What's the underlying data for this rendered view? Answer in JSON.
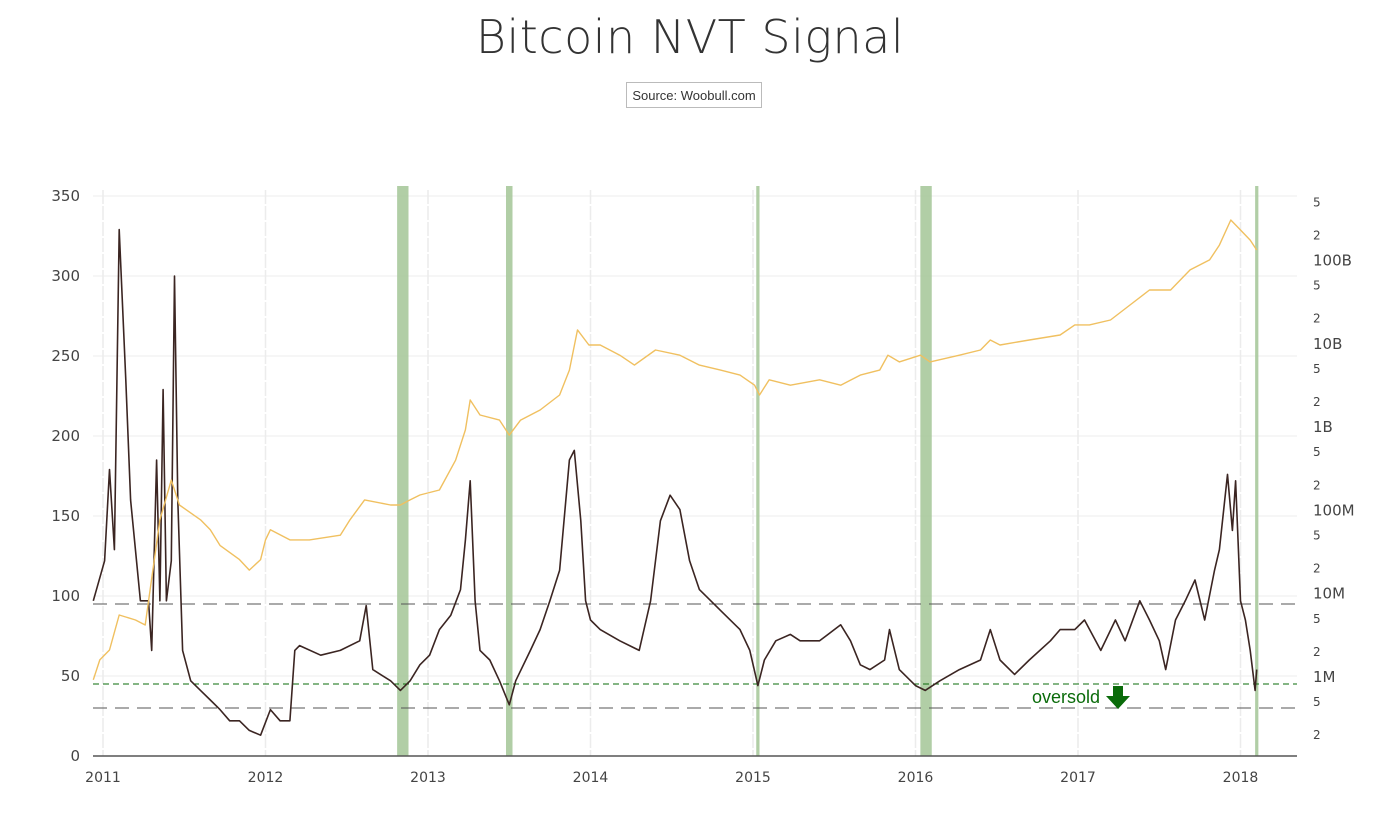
{
  "chart_data": {
    "type": "line",
    "title": "Bitcoin NVT Signal",
    "subtitle": "Source: Woobull.com",
    "x_ticks": [
      "2011",
      "2012",
      "2013",
      "2014",
      "2015",
      "2016",
      "2017",
      "2018"
    ],
    "xlim": [
      2010.94,
      2018.1
    ],
    "y_left": {
      "ylim": [
        0,
        350
      ],
      "ticks": [
        "0",
        "50",
        "100",
        "150",
        "200",
        "250",
        "300",
        "350"
      ],
      "scale": "linear"
    },
    "y_right": {
      "scale": "log",
      "ylim": [
        110000,
        690000000000
      ],
      "major_ticks": [
        {
          "value": 1000000,
          "label": "1M"
        },
        {
          "value": 10000000,
          "label": "10M"
        },
        {
          "value": 100000000,
          "label": "100M"
        },
        {
          "value": 1000000000,
          "label": "1B"
        },
        {
          "value": 10000000000,
          "label": "10B"
        },
        {
          "value": 100000000000,
          "label": "100B"
        }
      ],
      "minor_labels": [
        "2",
        "5"
      ]
    },
    "grid": true,
    "reference_lines": [
      {
        "value": 95,
        "color": "#555555",
        "style": "dashed"
      },
      {
        "value": 45,
        "color": "#0a6b0a",
        "style": "dashed"
      },
      {
        "value": 30,
        "color": "#555555",
        "style": "dashed"
      }
    ],
    "annotation": {
      "text": "oversold",
      "icon": "arrow-down-icon",
      "color": "#0a6b0a",
      "x": 2017.2,
      "y": 38
    },
    "highlight_bands": [
      [
        2012.81,
        2012.88
      ],
      [
        2013.48,
        2013.52
      ],
      [
        2015.02,
        2015.04
      ],
      [
        2016.03,
        2016.1
      ],
      [
        2018.09,
        2018.11
      ]
    ],
    "band_color": "#a8c99c",
    "series": [
      {
        "axis": "left",
        "color": "#3b2522",
        "points": [
          [
            2010.94,
            97
          ],
          [
            2011.01,
            122
          ],
          [
            2011.04,
            179
          ],
          [
            2011.07,
            129
          ],
          [
            2011.1,
            329
          ],
          [
            2011.14,
            235
          ],
          [
            2011.17,
            160
          ],
          [
            2011.23,
            97
          ],
          [
            2011.28,
            97
          ],
          [
            2011.3,
            66
          ],
          [
            2011.33,
            185
          ],
          [
            2011.35,
            97
          ],
          [
            2011.37,
            229
          ],
          [
            2011.39,
            97
          ],
          [
            2011.42,
            122
          ],
          [
            2011.44,
            300
          ],
          [
            2011.46,
            160
          ],
          [
            2011.49,
            66
          ],
          [
            2011.54,
            47
          ],
          [
            2011.6,
            41
          ],
          [
            2011.66,
            35
          ],
          [
            2011.72,
            29
          ],
          [
            2011.78,
            22
          ],
          [
            2011.84,
            22
          ],
          [
            2011.9,
            16
          ],
          [
            2011.97,
            13
          ],
          [
            2012.03,
            29
          ],
          [
            2012.09,
            22
          ],
          [
            2012.15,
            22
          ],
          [
            2012.18,
            66
          ],
          [
            2012.21,
            69
          ],
          [
            2012.34,
            63
          ],
          [
            2012.46,
            66
          ],
          [
            2012.58,
            72
          ],
          [
            2012.62,
            94
          ],
          [
            2012.66,
            54
          ],
          [
            2012.77,
            47
          ],
          [
            2012.83,
            41
          ],
          [
            2012.89,
            47
          ],
          [
            2012.95,
            57
          ],
          [
            2013.01,
            63
          ],
          [
            2013.07,
            79
          ],
          [
            2013.14,
            88
          ],
          [
            2013.2,
            104
          ],
          [
            2013.23,
            135
          ],
          [
            2013.26,
            172
          ],
          [
            2013.29,
            97
          ],
          [
            2013.32,
            66
          ],
          [
            2013.38,
            60
          ],
          [
            2013.44,
            47
          ],
          [
            2013.5,
            32
          ],
          [
            2013.54,
            47
          ],
          [
            2013.63,
            66
          ],
          [
            2013.69,
            79
          ],
          [
            2013.75,
            97
          ],
          [
            2013.81,
            116
          ],
          [
            2013.87,
            185
          ],
          [
            2013.9,
            191
          ],
          [
            2013.94,
            147
          ],
          [
            2013.97,
            97
          ],
          [
            2014.0,
            85
          ],
          [
            2014.06,
            79
          ],
          [
            2014.18,
            72
          ],
          [
            2014.3,
            66
          ],
          [
            2014.37,
            97
          ],
          [
            2014.43,
            147
          ],
          [
            2014.49,
            163
          ],
          [
            2014.55,
            154
          ],
          [
            2014.61,
            122
          ],
          [
            2014.67,
            104
          ],
          [
            2014.74,
            97
          ],
          [
            2014.8,
            91
          ],
          [
            2014.92,
            79
          ],
          [
            2014.98,
            66
          ],
          [
            2015.03,
            44
          ],
          [
            2015.07,
            60
          ],
          [
            2015.14,
            72
          ],
          [
            2015.23,
            76
          ],
          [
            2015.29,
            72
          ],
          [
            2015.41,
            72
          ],
          [
            2015.54,
            82
          ],
          [
            2015.6,
            72
          ],
          [
            2015.66,
            57
          ],
          [
            2015.72,
            54
          ],
          [
            2015.81,
            60
          ],
          [
            2015.84,
            79
          ],
          [
            2015.9,
            54
          ],
          [
            2016.0,
            44
          ],
          [
            2016.06,
            41
          ],
          [
            2016.15,
            47
          ],
          [
            2016.27,
            54
          ],
          [
            2016.4,
            60
          ],
          [
            2016.46,
            79
          ],
          [
            2016.52,
            60
          ],
          [
            2016.61,
            51
          ],
          [
            2016.7,
            60
          ],
          [
            2016.83,
            72
          ],
          [
            2016.89,
            79
          ],
          [
            2016.98,
            79
          ],
          [
            2017.04,
            85
          ],
          [
            2017.14,
            66
          ],
          [
            2017.23,
            85
          ],
          [
            2017.29,
            72
          ],
          [
            2017.38,
            97
          ],
          [
            2017.44,
            85
          ],
          [
            2017.5,
            72
          ],
          [
            2017.54,
            54
          ],
          [
            2017.6,
            85
          ],
          [
            2017.66,
            97
          ],
          [
            2017.72,
            110
          ],
          [
            2017.78,
            85
          ],
          [
            2017.84,
            116
          ],
          [
            2017.87,
            129
          ],
          [
            2017.92,
            176
          ],
          [
            2017.95,
            141
          ],
          [
            2017.97,
            172
          ],
          [
            2018.0,
            97
          ],
          [
            2018.03,
            85
          ],
          [
            2018.06,
            66
          ],
          [
            2018.09,
            41
          ],
          [
            2018.1,
            54
          ]
        ]
      },
      {
        "axis": "right",
        "color": "#f0c060",
        "points": [
          [
            2010.94,
            900000
          ],
          [
            2010.98,
            1560000
          ],
          [
            2011.04,
            2050000
          ],
          [
            2011.1,
            5400000
          ],
          [
            2011.2,
            4700000
          ],
          [
            2011.26,
            4100000
          ],
          [
            2011.29,
            10800000
          ],
          [
            2011.35,
            75000000
          ],
          [
            2011.42,
            225000000
          ],
          [
            2011.47,
            113000000
          ],
          [
            2011.6,
            75000000
          ],
          [
            2011.66,
            57000000
          ],
          [
            2011.72,
            37000000
          ],
          [
            2011.84,
            25000000
          ],
          [
            2011.9,
            18700000
          ],
          [
            2011.97,
            25000000
          ],
          [
            2012.0,
            43000000
          ],
          [
            2012.03,
            57000000
          ],
          [
            2012.15,
            43000000
          ],
          [
            2012.27,
            43000000
          ],
          [
            2012.46,
            49000000
          ],
          [
            2012.52,
            75000000
          ],
          [
            2012.61,
            130000000
          ],
          [
            2012.77,
            113000000
          ],
          [
            2012.83,
            113000000
          ],
          [
            2012.89,
            130000000
          ],
          [
            2012.95,
            149000000
          ],
          [
            2013.07,
            171000000
          ],
          [
            2013.17,
            390000000
          ],
          [
            2013.23,
            900000000
          ],
          [
            2013.26,
            2060000000
          ],
          [
            2013.32,
            1360000000
          ],
          [
            2013.44,
            1180000000
          ],
          [
            2013.5,
            780000000
          ],
          [
            2013.57,
            1180000000
          ],
          [
            2013.69,
            1560000000
          ],
          [
            2013.81,
            2360000000
          ],
          [
            2013.87,
            4700000000
          ],
          [
            2013.92,
            14300000000
          ],
          [
            2013.99,
            9400000000
          ],
          [
            2014.06,
            9400000000
          ],
          [
            2014.18,
            7100000000
          ],
          [
            2014.27,
            5400000000
          ],
          [
            2014.4,
            8200000000
          ],
          [
            2014.55,
            7100000000
          ],
          [
            2014.67,
            5400000000
          ],
          [
            2014.8,
            4700000000
          ],
          [
            2014.92,
            4100000000
          ],
          [
            2015.01,
            3100000000
          ],
          [
            2015.04,
            2360000000
          ],
          [
            2015.1,
            3600000000
          ],
          [
            2015.23,
            3100000000
          ],
          [
            2015.41,
            3600000000
          ],
          [
            2015.54,
            3100000000
          ],
          [
            2015.66,
            4100000000
          ],
          [
            2015.78,
            4700000000
          ],
          [
            2015.83,
            7100000000
          ],
          [
            2015.9,
            5900000000
          ],
          [
            2016.03,
            7100000000
          ],
          [
            2016.09,
            5900000000
          ],
          [
            2016.27,
            7100000000
          ],
          [
            2016.4,
            8200000000
          ],
          [
            2016.46,
            10800000000
          ],
          [
            2016.52,
            9400000000
          ],
          [
            2016.7,
            10800000000
          ],
          [
            2016.89,
            12400000000
          ],
          [
            2016.98,
            16400000000
          ],
          [
            2017.07,
            16400000000
          ],
          [
            2017.2,
            18800000000
          ],
          [
            2017.32,
            28400000000
          ],
          [
            2017.44,
            43000000000
          ],
          [
            2017.57,
            43000000000
          ],
          [
            2017.69,
            75000000000
          ],
          [
            2017.81,
            99000000000
          ],
          [
            2017.87,
            149000000000
          ],
          [
            2017.94,
            298000000000
          ],
          [
            2018.0,
            226000000000
          ],
          [
            2018.06,
            171000000000
          ],
          [
            2018.1,
            130000000000
          ]
        ]
      }
    ]
  }
}
